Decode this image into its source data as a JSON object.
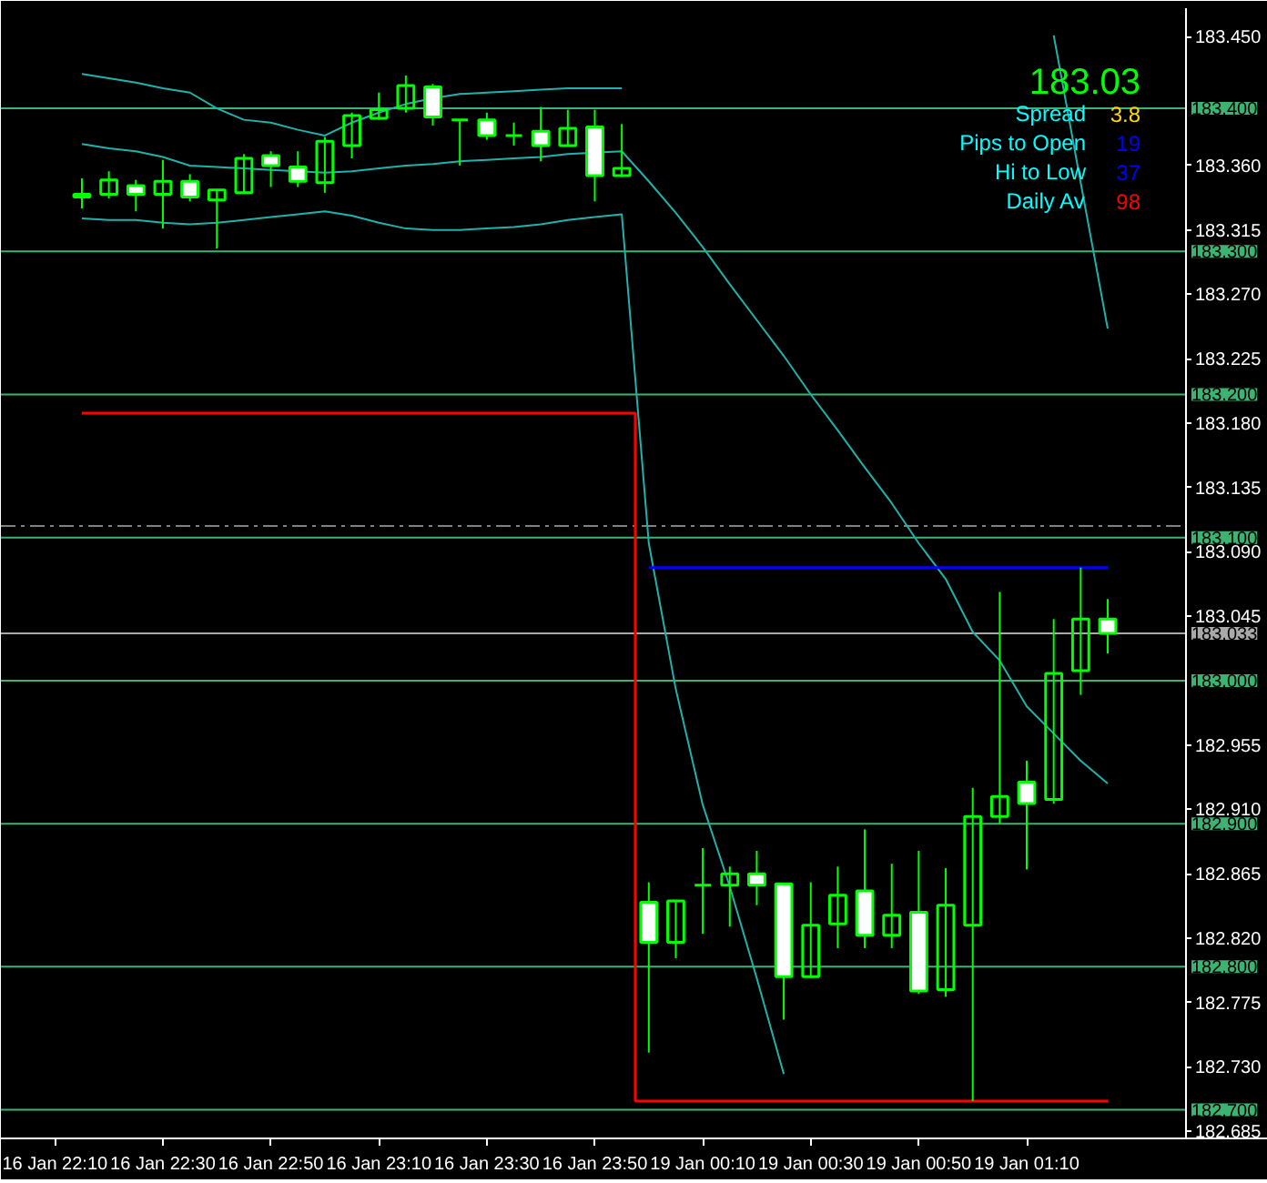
{
  "chart_data": {
    "type": "candlestick",
    "categories": [
      "16 Jan 22:10",
      null,
      null,
      null,
      "16 Jan 22:30",
      null,
      null,
      null,
      "16 Jan 22:50",
      null,
      null,
      null,
      "16 Jan 23:10",
      null,
      null,
      null,
      "16 Jan 23:30",
      null,
      null,
      null,
      "16 Jan 23:50",
      null,
      null,
      null,
      "19 Jan 00:10",
      null,
      null,
      null,
      "19 Jan 00:30",
      null,
      null,
      null,
      "19 Jan 00:50",
      null,
      null,
      null,
      "19 Jan 01:10",
      null,
      null,
      null
    ],
    "ohlc": [
      null,
      [
        183.338,
        183.351,
        183.33,
        183.34
      ],
      [
        183.34,
        183.356,
        183.337,
        183.35
      ],
      [
        183.346,
        183.35,
        183.328,
        183.34
      ],
      [
        183.34,
        183.364,
        183.316,
        183.349
      ],
      [
        183.349,
        183.354,
        183.335,
        183.338
      ],
      [
        183.336,
        183.343,
        183.302,
        183.343
      ],
      [
        183.341,
        183.368,
        183.341,
        183.365
      ],
      [
        183.367,
        183.37,
        183.345,
        183.36
      ],
      [
        183.359,
        183.37,
        183.345,
        183.349
      ],
      [
        183.348,
        183.38,
        183.341,
        183.377
      ],
      [
        183.374,
        183.397,
        183.365,
        183.395
      ],
      [
        183.393,
        183.411,
        183.392,
        183.399
      ],
      [
        183.4,
        183.423,
        183.397,
        183.416
      ],
      [
        183.415,
        183.417,
        183.388,
        183.394
      ],
      [
        183.392,
        183.392,
        183.36,
        183.392
      ],
      [
        183.392,
        183.397,
        183.378,
        183.381
      ],
      [
        183.381,
        183.39,
        183.374,
        183.381
      ],
      [
        183.384,
        183.401,
        183.363,
        183.374
      ],
      [
        183.374,
        183.399,
        183.374,
        183.386
      ],
      [
        183.387,
        183.399,
        183.335,
        183.353
      ],
      [
        183.353,
        183.389,
        183.352,
        183.358
      ],
      [
        182.845,
        182.859,
        182.74,
        182.817
      ],
      [
        182.817,
        182.846,
        182.806,
        182.846
      ],
      [
        182.857,
        182.883,
        182.823,
        182.857
      ],
      [
        182.857,
        182.87,
        182.828,
        182.865
      ],
      [
        182.865,
        182.881,
        182.843,
        182.857
      ],
      [
        182.858,
        182.858,
        182.763,
        182.793
      ],
      [
        182.793,
        182.859,
        182.792,
        182.829
      ],
      [
        182.83,
        182.87,
        182.813,
        182.85
      ],
      [
        182.853,
        182.896,
        182.813,
        182.822
      ],
      [
        182.822,
        182.872,
        182.813,
        182.836
      ],
      [
        182.838,
        182.881,
        182.781,
        182.783
      ],
      [
        182.784,
        182.869,
        182.779,
        182.843
      ],
      [
        182.829,
        182.925,
        182.706,
        182.905
      ],
      [
        182.905,
        183.062,
        182.9,
        182.919
      ],
      [
        182.929,
        182.944,
        182.868,
        182.914
      ],
      [
        182.917,
        183.043,
        182.914,
        183.005
      ],
      [
        183.007,
        183.079,
        182.99,
        183.043
      ],
      [
        183.043,
        183.057,
        183.019,
        183.033
      ]
    ],
    "series": [
      {
        "type": "line",
        "color": "#20b2aa",
        "values": [
          null,
          183.424,
          183.421,
          183.418,
          183.414,
          183.411,
          183.4,
          183.392,
          183.39,
          183.385,
          183.381,
          183.39,
          183.397,
          183.403,
          183.407,
          183.41,
          183.411,
          183.412,
          183.413,
          183.414,
          183.414,
          183.414,
          null,
          null,
          null,
          null,
          null,
          null,
          null,
          null,
          null,
          null,
          null,
          null,
          null,
          null,
          null,
          183.451,
          183.348,
          183.246
        ]
      },
      {
        "type": "line",
        "color": "#20b2aa",
        "values": [
          null,
          183.375,
          183.372,
          183.37,
          183.366,
          183.36,
          183.359,
          183.358,
          183.357,
          183.356,
          183.355,
          183.356,
          183.358,
          183.36,
          183.361,
          183.363,
          183.364,
          183.365,
          183.366,
          183.368,
          183.369,
          183.37,
          183.349,
          183.327,
          183.303,
          183.277,
          183.252,
          183.227,
          183.2,
          183.175,
          183.149,
          183.124,
          183.096,
          183.071,
          183.034,
          183.014,
          182.982,
          182.963,
          182.944,
          182.928
        ]
      },
      {
        "type": "line",
        "color": "#20b2aa",
        "values": [
          null,
          183.323,
          183.322,
          183.322,
          183.32,
          183.319,
          183.32,
          183.322,
          183.324,
          183.326,
          183.328,
          183.325,
          183.32,
          183.316,
          183.315,
          183.315,
          183.316,
          183.317,
          183.319,
          183.322,
          183.324,
          183.326,
          183.096,
          182.994,
          182.913,
          182.856,
          182.792,
          182.725,
          null,
          null,
          null,
          null,
          null,
          null,
          null,
          null,
          null,
          null,
          null,
          null
        ]
      },
      {
        "type": "step",
        "color": "#ff0000",
        "values": [
          null,
          183.187,
          183.187,
          183.187,
          183.187,
          183.187,
          183.187,
          183.187,
          183.187,
          183.187,
          183.187,
          183.187,
          183.187,
          183.187,
          183.187,
          183.187,
          183.187,
          183.187,
          183.187,
          183.187,
          183.187,
          183.187,
          182.706,
          182.706,
          182.706,
          182.706,
          182.706,
          182.706,
          182.706,
          182.706,
          182.706,
          182.706,
          182.706,
          182.706,
          182.706,
          182.706,
          182.706,
          182.706,
          182.706,
          182.706
        ]
      },
      {
        "type": "step",
        "color": "#0000ff",
        "values": [
          null,
          null,
          null,
          null,
          null,
          null,
          null,
          null,
          null,
          null,
          null,
          null,
          null,
          null,
          null,
          null,
          null,
          null,
          null,
          null,
          null,
          null,
          183.079,
          183.079,
          183.079,
          183.079,
          183.079,
          183.079,
          183.079,
          183.079,
          183.079,
          183.079,
          183.079,
          183.079,
          183.079,
          183.079,
          183.079,
          183.079,
          183.079,
          183.079
        ]
      }
    ],
    "ylim": [
      182.68,
      183.47
    ],
    "yticks": [
      {
        "value": 183.45,
        "label": "183.450"
      },
      {
        "value": 183.36,
        "label": "183.360"
      },
      {
        "value": 183.315,
        "label": "183.315"
      },
      {
        "value": 183.27,
        "label": "183.270"
      },
      {
        "value": 183.225,
        "label": "183.225"
      },
      {
        "value": 183.18,
        "label": "183.180"
      },
      {
        "value": 183.135,
        "label": "183.135"
      },
      {
        "value": 183.09,
        "label": "183.090"
      },
      {
        "value": 183.045,
        "label": "183.045"
      },
      {
        "value": 182.955,
        "label": "182.955"
      },
      {
        "value": 182.91,
        "label": "182.910"
      },
      {
        "value": 182.865,
        "label": "182.865"
      },
      {
        "value": 182.82,
        "label": "182.820"
      },
      {
        "value": 182.775,
        "label": "182.775"
      },
      {
        "value": 182.73,
        "label": "182.730"
      },
      {
        "value": 182.685,
        "label": "182.685"
      }
    ],
    "ref_lines": [
      {
        "axis": "y",
        "value": 183.4,
        "label": "183.400",
        "color": "#3cb371"
      },
      {
        "axis": "y",
        "value": 183.3,
        "label": "183.300",
        "color": "#3cb371"
      },
      {
        "axis": "y",
        "value": 183.2,
        "label": "183.200",
        "color": "#3cb371"
      },
      {
        "axis": "y",
        "value": 183.108,
        "color": "#808080",
        "line_style": "dashed"
      },
      {
        "axis": "y",
        "value": 183.1,
        "label": "183.100",
        "color": "#3cb371"
      },
      {
        "axis": "y",
        "value": 183.033,
        "label": "183.033",
        "color": "#a9a9a9"
      },
      {
        "axis": "y",
        "value": 183.0,
        "label": "183.000",
        "color": "#3cb371"
      },
      {
        "axis": "y",
        "value": 182.9,
        "label": "182.900",
        "color": "#3cb371"
      },
      {
        "axis": "y",
        "value": 182.8,
        "label": "182.800",
        "color": "#3cb371"
      },
      {
        "axis": "y",
        "value": 182.7,
        "label": "182.700",
        "color": "#3cb371"
      }
    ],
    "annotations": [
      "183.03",
      "Spread",
      "3.8",
      "Pips to Open",
      "19",
      "Hi to Low",
      "37",
      "Daily Av",
      "98"
    ],
    "grid": false
  }
}
